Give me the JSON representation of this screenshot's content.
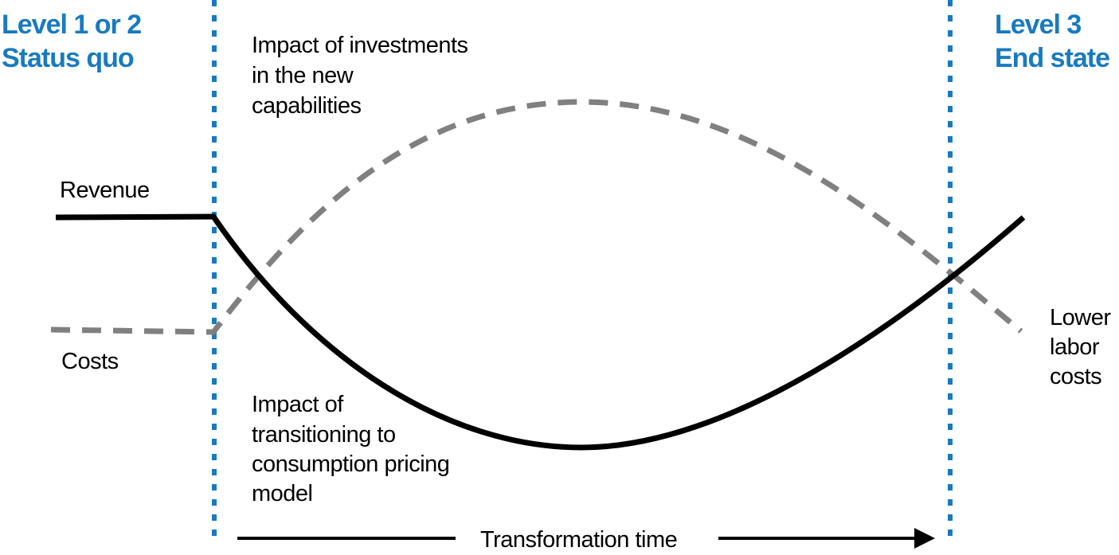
{
  "colors": {
    "phase_blue": "#1a7abf",
    "revenue": "#000000",
    "costs": "#808080",
    "text": "#000000"
  },
  "phases": {
    "left": {
      "line1": "Level 1 or 2",
      "line2": "Status quo"
    },
    "right": {
      "line1": "Level 3",
      "line2": "End state"
    }
  },
  "annotations": {
    "investments": [
      "Impact of investments",
      "in the new",
      "capabilities"
    ],
    "pricing": [
      "Impact of",
      "transitioning to",
      "consumption pricing",
      "model"
    ],
    "lower_labor": [
      "Lower",
      "labor",
      "costs"
    ]
  },
  "series": {
    "revenue": "Revenue",
    "costs": "Costs"
  },
  "axis": {
    "time_label": "Transformation time"
  }
}
